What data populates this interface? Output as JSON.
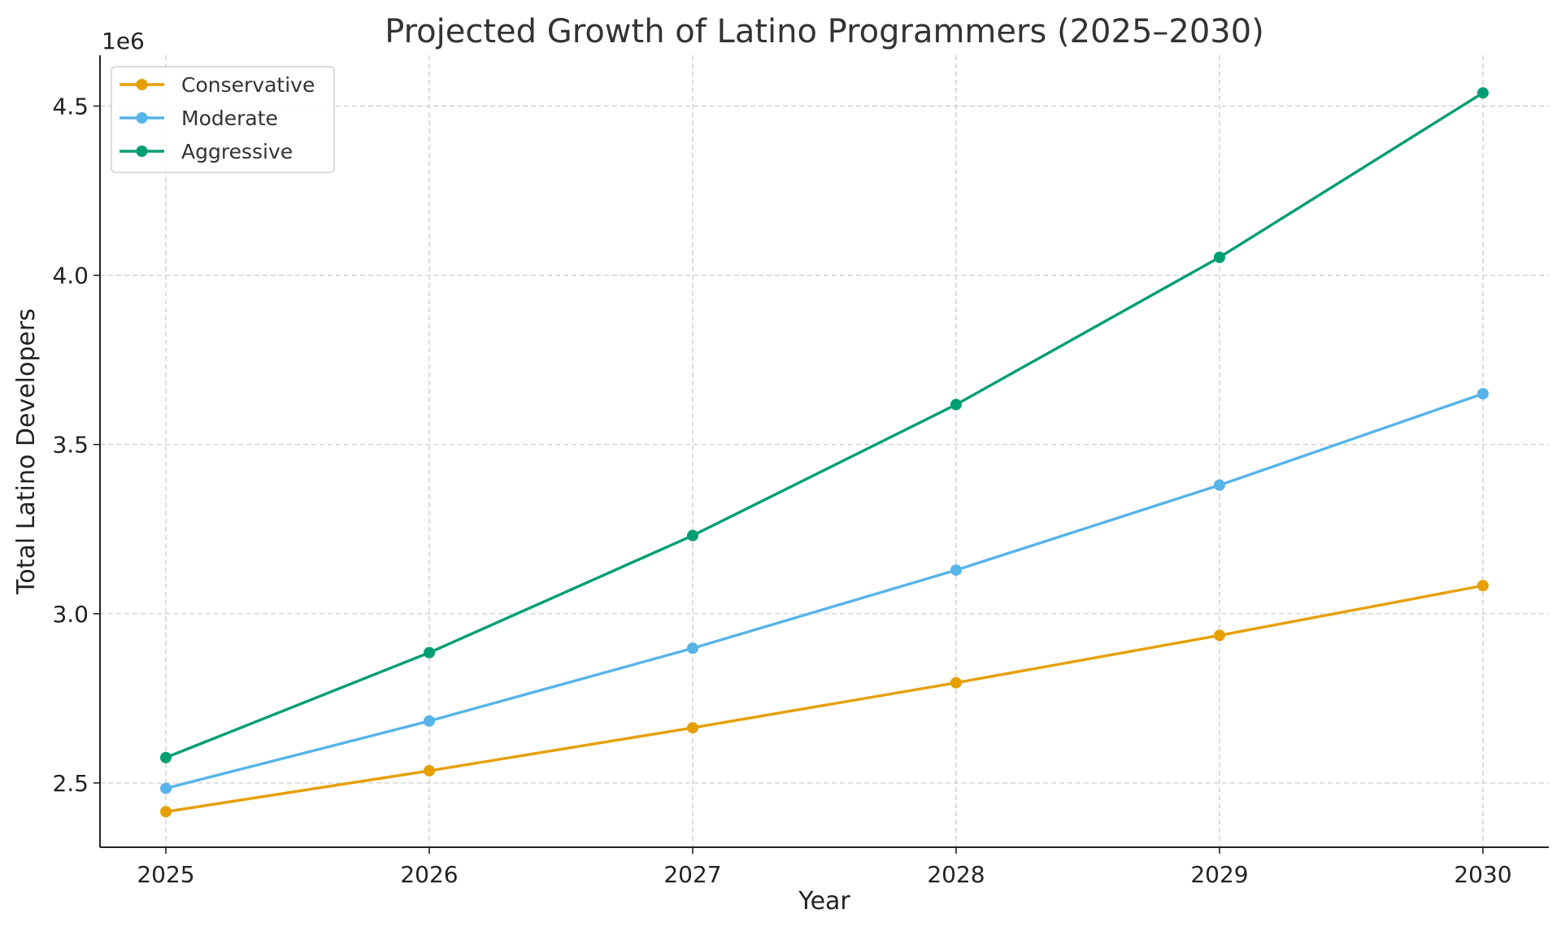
{
  "chart_data": {
    "type": "line",
    "title": "Projected Growth of Latino Programmers (2025–2030)",
    "xlabel": "Year",
    "ylabel": "Total Latino Developers",
    "y_offset_text": "1e6",
    "x": [
      2025,
      2026,
      2027,
      2028,
      2029,
      2030
    ],
    "x_tick_labels": [
      "2025",
      "2026",
      "2027",
      "2028",
      "2029",
      "2030"
    ],
    "y_ticks": [
      2.5,
      3.0,
      3.5,
      4.0,
      4.5
    ],
    "y_tick_labels": [
      "2.5",
      "3.0",
      "3.5",
      "4.0",
      "4.5"
    ],
    "ylim": [
      2.31,
      4.65
    ],
    "xlim": [
      2024.75,
      2030.25
    ],
    "grid": true,
    "legend_position": "upper-left",
    "series": [
      {
        "name": "Conservative",
        "color": "#E69F00",
        "values": [
          2.415,
          2.536,
          2.663,
          2.796,
          2.936,
          3.083
        ]
      },
      {
        "name": "Moderate",
        "color": "#56B4E9",
        "values": [
          2.484,
          2.683,
          2.898,
          3.129,
          3.38,
          3.65
        ]
      },
      {
        "name": "Aggressive",
        "color": "#009E73",
        "values": [
          2.575,
          2.885,
          3.231,
          3.618,
          4.053,
          4.539
        ]
      }
    ]
  }
}
